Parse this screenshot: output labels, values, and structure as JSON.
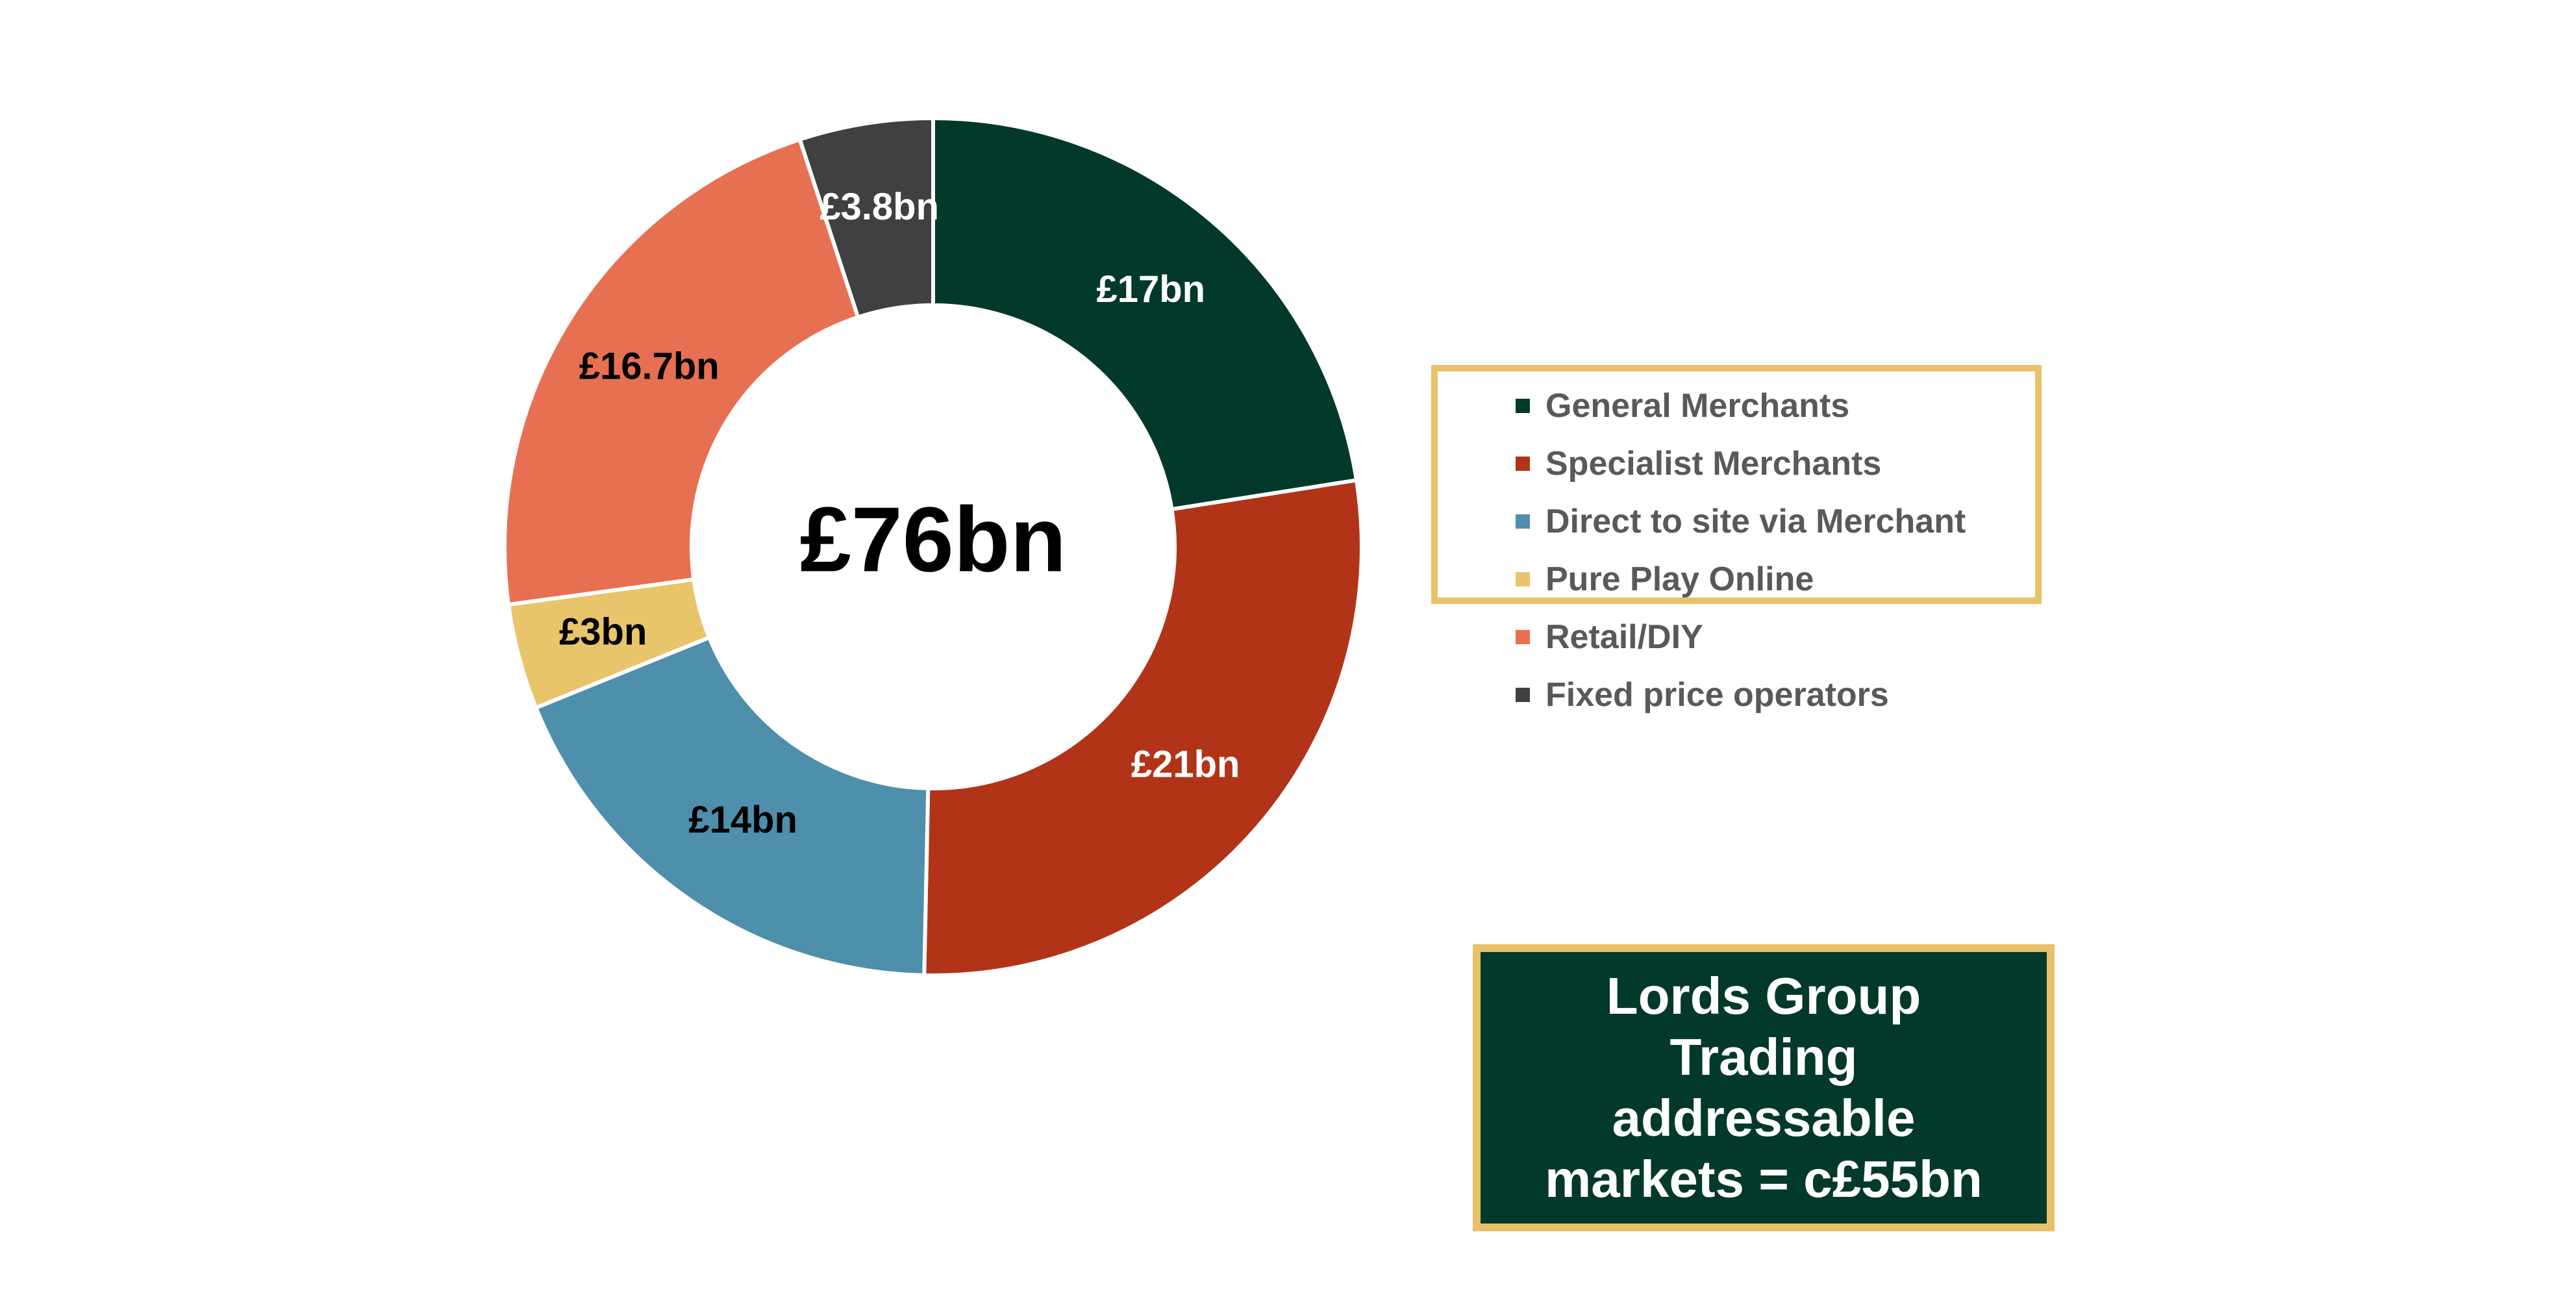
{
  "chart_data": {
    "type": "pie",
    "variant": "donut",
    "center_label": "£76bn",
    "segments": [
      {
        "name": "General Merchants",
        "value": 17,
        "label": "£17bn",
        "color": "#02392A",
        "label_color": "#ffffff"
      },
      {
        "name": "Specialist Merchants",
        "value": 21,
        "label": "£21bn",
        "color": "#B23418",
        "label_color": "#ffffff"
      },
      {
        "name": "Direct to site via Merchant",
        "value": 14,
        "label": "£14bn",
        "color": "#4E8FAB",
        "label_color": "#000000"
      },
      {
        "name": "Pure Play Online",
        "value": 3,
        "label": "£3bn",
        "color": "#E8C56A",
        "label_color": "#000000"
      },
      {
        "name": "Retail/DIY",
        "value": 16.7,
        "label": "£16.7bn",
        "color": "#E87052",
        "label_color": "#000000"
      },
      {
        "name": "Fixed price operators",
        "value": 3.8,
        "label": "£3.8bn",
        "color": "#404040",
        "label_color": "#ffffff"
      }
    ],
    "legend_placement": "right",
    "legend_highlight_color": "#E8C26A"
  },
  "callout": {
    "text_lines": [
      "Lords Group",
      "Trading",
      "addressable",
      "markets = c£55bn"
    ],
    "background": "#02392A",
    "border": "#E8C26A"
  }
}
